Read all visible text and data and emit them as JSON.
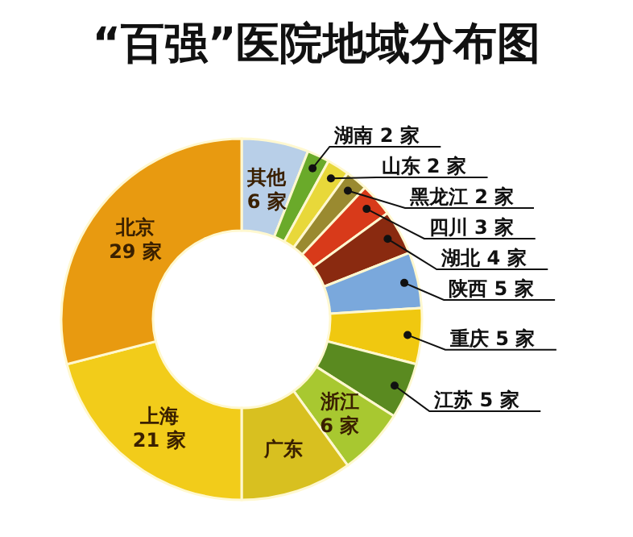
{
  "chart_data": {
    "type": "donut",
    "title": "“百强”医院地域分布图",
    "categories": [
      "其他",
      "湖南",
      "山东",
      "黑龙江",
      "四川",
      "湖北",
      "陕西",
      "重庆",
      "江苏",
      "浙江",
      "广东",
      "上海",
      "北京"
    ],
    "values": [
      6,
      2,
      2,
      2,
      3,
      4,
      5,
      5,
      5,
      6,
      10,
      21,
      29
    ],
    "value_labels": [
      "6 家",
      "2 家",
      "2 家",
      "2 家",
      "3 家",
      "4 家",
      "5 家",
      "5 家",
      "5 家",
      "6 家",
      null,
      "21 家",
      "29 家"
    ],
    "colors": [
      "#b8cfe8",
      "#6aaa2a",
      "#e8d83a",
      "#9a8a30",
      "#d83a1a",
      "#8a2a10",
      "#7aa8dc",
      "#f0c810",
      "#5a8a20",
      "#a8c830",
      "#d8c020",
      "#f2cc1a",
      "#e89a10"
    ]
  }
}
